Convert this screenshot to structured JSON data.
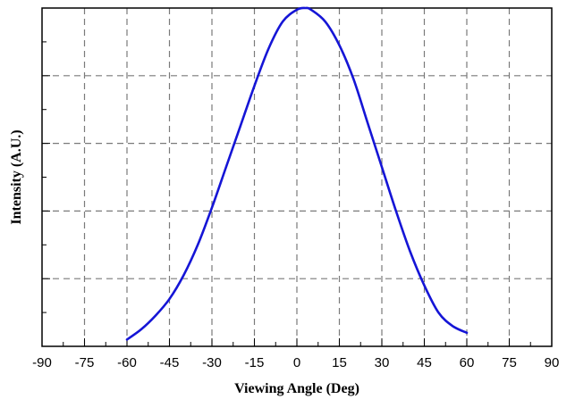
{
  "chart_data": {
    "type": "line",
    "xlabel": "Viewing Angle (Deg)",
    "ylabel": "Intensity (A.U.)",
    "xlim": [
      -90,
      90
    ],
    "ylim": [
      0,
      1
    ],
    "x_ticks": [
      "-90",
      "-75",
      "-60",
      "-45",
      "-30",
      "-15",
      "0",
      "15",
      "30",
      "45",
      "60",
      "75",
      "90"
    ],
    "y_tick_labels_shown": false,
    "grid": true,
    "series": [
      {
        "color": "#1515d6",
        "x": [
          -60,
          -55,
          -50,
          -45,
          -40,
          -35,
          -30,
          -25,
          -20,
          -15,
          -10,
          -5,
          0,
          3,
          5,
          10,
          15,
          20,
          25,
          30,
          35,
          40,
          45,
          50,
          55,
          60
        ],
        "y": [
          0.02,
          0.05,
          0.09,
          0.14,
          0.21,
          0.3,
          0.41,
          0.53,
          0.65,
          0.77,
          0.88,
          0.96,
          0.995,
          1.0,
          0.995,
          0.96,
          0.89,
          0.79,
          0.66,
          0.53,
          0.4,
          0.28,
          0.18,
          0.1,
          0.06,
          0.04
        ]
      }
    ]
  }
}
